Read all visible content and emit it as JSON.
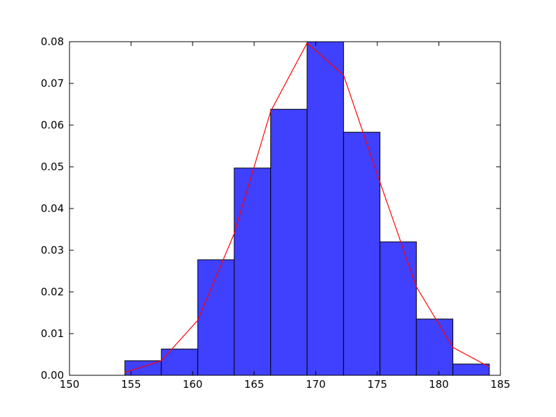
{
  "chart_data": {
    "type": "histogram",
    "bins": [
      154.5,
      157.46,
      160.42,
      163.38,
      166.34,
      169.3,
      172.26,
      175.22,
      178.18,
      181.14,
      184.1
    ],
    "values": [
      0.0035,
      0.0063,
      0.0277,
      0.0497,
      0.0638,
      0.08,
      0.0583,
      0.032,
      0.0135,
      0.0027
    ],
    "color": "#4040ff",
    "line": {
      "x": [
        154.5,
        157.46,
        160.42,
        163.38,
        166.34,
        169.3,
        172.26,
        175.22,
        178.18,
        181.14,
        184.1
      ],
      "values": [
        0.0007,
        0.0035,
        0.0132,
        0.034,
        0.0633,
        0.0797,
        0.072,
        0.0463,
        0.0212,
        0.0067,
        0.002
      ],
      "color": "#ff0000"
    },
    "xlim": [
      150,
      185
    ],
    "xticks": [
      150,
      155,
      160,
      165,
      170,
      175,
      180,
      185
    ],
    "ylim": [
      0,
      0.08
    ],
    "yticks": [
      {
        "value": 0,
        "label": "0.00"
      },
      {
        "value": 0.01,
        "label": "0.01"
      },
      {
        "value": 0.02,
        "label": "0.02"
      },
      {
        "value": 0.03,
        "label": "0.03"
      },
      {
        "value": 0.04,
        "label": "0.04"
      },
      {
        "value": 0.05,
        "label": "0.05"
      },
      {
        "value": 0.06,
        "label": "0.06"
      },
      {
        "value": 0.07,
        "label": "0.07"
      },
      {
        "value": 0.08,
        "label": "0.08"
      }
    ]
  }
}
